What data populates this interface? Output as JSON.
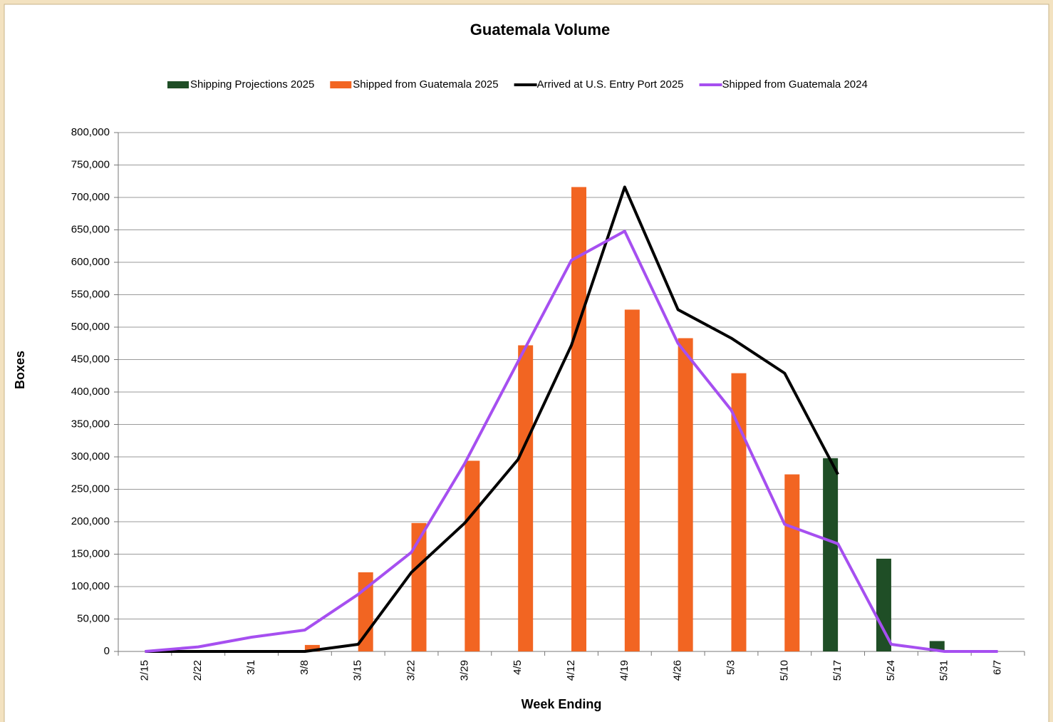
{
  "chart_data": {
    "type": "combo",
    "title": "Guatemala Volume",
    "x_label": "Week Ending",
    "y_label": "Boxes",
    "categories": [
      "2/15",
      "2/22",
      "3/1",
      "3/8",
      "3/15",
      "3/22",
      "3/29",
      "4/5",
      "4/12",
      "4/19",
      "4/26",
      "5/3",
      "5/10",
      "5/17",
      "5/24",
      "5/31",
      "6/7"
    ],
    "series": [
      {
        "name": "Shipping Projections 2025",
        "type": "bar",
        "color": "#1f4e26",
        "values": [
          null,
          null,
          null,
          null,
          null,
          null,
          null,
          null,
          null,
          null,
          null,
          null,
          null,
          298000,
          143000,
          16000,
          null
        ]
      },
      {
        "name": "Shipped from Guatemala 2025",
        "type": "bar",
        "color": "#f26522",
        "values": [
          null,
          null,
          null,
          10000,
          122000,
          198000,
          294000,
          472000,
          716000,
          527000,
          483000,
          429000,
          273000,
          null,
          null,
          null,
          null
        ]
      },
      {
        "name": "Arrived at U.S. Entry Port 2025",
        "type": "line",
        "color": "#000000",
        "values": [
          0,
          0,
          0,
          0,
          11000,
          122000,
          198000,
          296000,
          472000,
          716000,
          527000,
          483000,
          429000,
          273000,
          null,
          null,
          null
        ]
      },
      {
        "name": "Shipped from Guatemala 2024",
        "type": "line",
        "color": "#a64ff0",
        "values": [
          0,
          7000,
          22000,
          33000,
          88000,
          153000,
          290000,
          447000,
          603000,
          648000,
          475000,
          372000,
          196000,
          166000,
          11000,
          0,
          0
        ]
      }
    ],
    "ylim": [
      0,
      800000
    ],
    "yticks": [
      0,
      {
        "value": 50000,
        "label": "50,000"
      },
      {
        "value": 100000,
        "label": "100,000"
      },
      {
        "value": 150000,
        "label": "150,000"
      },
      {
        "value": 200000,
        "label": "200,000"
      },
      {
        "value": 250000,
        "label": "250,000"
      },
      {
        "value": 300000,
        "label": "300,000"
      },
      {
        "value": 350000,
        "label": "350,000"
      },
      {
        "value": 400000,
        "label": "400,000"
      },
      {
        "value": 450000,
        "label": "450,000"
      },
      {
        "value": 500000,
        "label": "500,000"
      },
      {
        "value": 550000,
        "label": "550,000"
      },
      {
        "value": 600000,
        "label": "600,000"
      },
      {
        "value": 650000,
        "label": "650,000"
      },
      {
        "value": 700000,
        "label": "700,000"
      },
      {
        "value": 750000,
        "label": "750,000"
      },
      {
        "value": 800000,
        "label": "800,000"
      }
    ],
    "grid": true,
    "legend": "top"
  }
}
